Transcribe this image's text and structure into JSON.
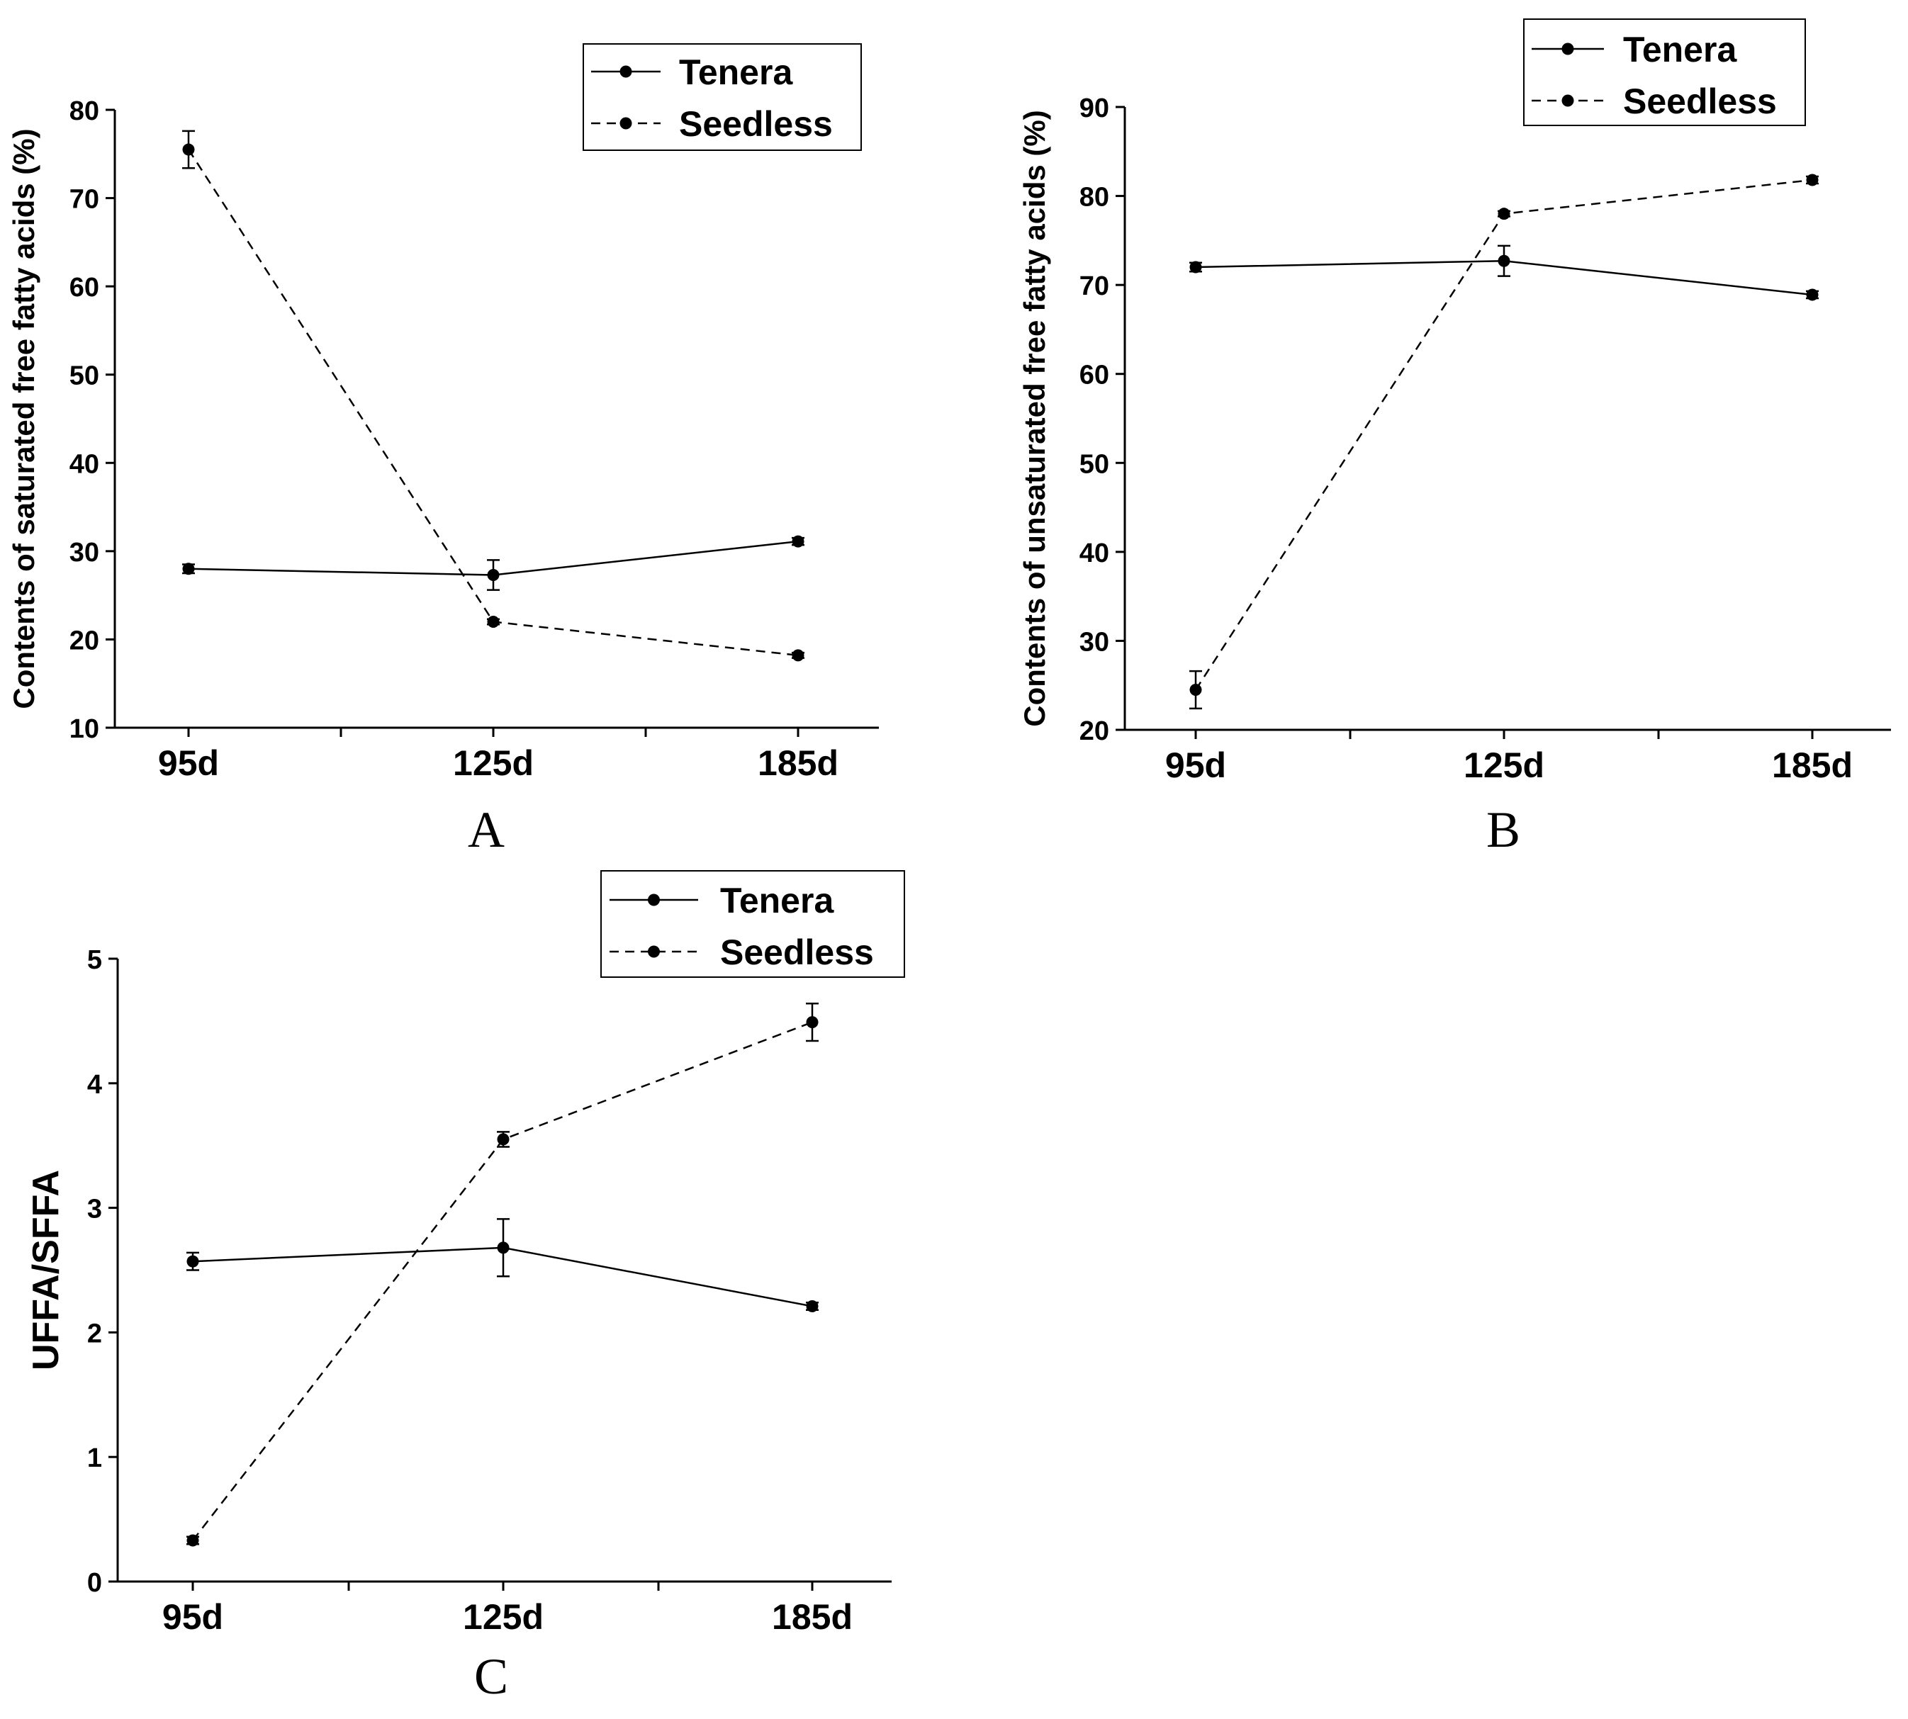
{
  "chart_data": [
    {
      "panel_label": "A",
      "type": "line",
      "ylabel": "Contents of saturated free fatty acids (%)",
      "categories": [
        "95d",
        "125d",
        "185d"
      ],
      "ylim": [
        10,
        80
      ],
      "yticks": [
        "10",
        "20",
        "30",
        "40",
        "50",
        "60",
        "70",
        "80"
      ],
      "legend_position": "top-right",
      "series": [
        {
          "name": "Tenera",
          "style": "solid",
          "values": [
            28.0,
            27.3,
            31.1
          ],
          "errors": [
            0.5,
            1.7,
            0.4
          ]
        },
        {
          "name": "Seedless",
          "style": "dashed",
          "values": [
            75.5,
            22.0,
            18.2
          ],
          "errors": [
            2.1,
            0.3,
            0.3
          ]
        }
      ]
    },
    {
      "panel_label": "B",
      "type": "line",
      "ylabel": "Contents of unsaturated free fatty acids (%)",
      "categories": [
        "95d",
        "125d",
        "185d"
      ],
      "ylim": [
        20,
        90
      ],
      "yticks": [
        "20",
        "30",
        "40",
        "50",
        "60",
        "70",
        "80",
        "90"
      ],
      "legend_position": "top-right",
      "series": [
        {
          "name": "Tenera",
          "style": "solid",
          "values": [
            72.0,
            72.7,
            68.9
          ],
          "errors": [
            0.5,
            1.7,
            0.4
          ]
        },
        {
          "name": "Seedless",
          "style": "dashed",
          "values": [
            24.5,
            78.0,
            81.8
          ],
          "errors": [
            2.1,
            0.3,
            0.4
          ]
        }
      ]
    },
    {
      "panel_label": "C",
      "type": "line",
      "ylabel": "UFFA/SFFA",
      "categories": [
        "95d",
        "125d",
        "185d"
      ],
      "ylim": [
        0,
        5
      ],
      "yticks": [
        "0",
        "1",
        "2",
        "3",
        "4",
        "5"
      ],
      "legend_position": "top-right",
      "series": [
        {
          "name": "Tenera",
          "style": "solid",
          "values": [
            2.57,
            2.68,
            2.21
          ],
          "errors": [
            0.07,
            0.23,
            0.03
          ]
        },
        {
          "name": "Seedless",
          "style": "dashed",
          "values": [
            0.33,
            3.55,
            4.49
          ],
          "errors": [
            0.03,
            0.06,
            0.15
          ]
        }
      ]
    }
  ]
}
